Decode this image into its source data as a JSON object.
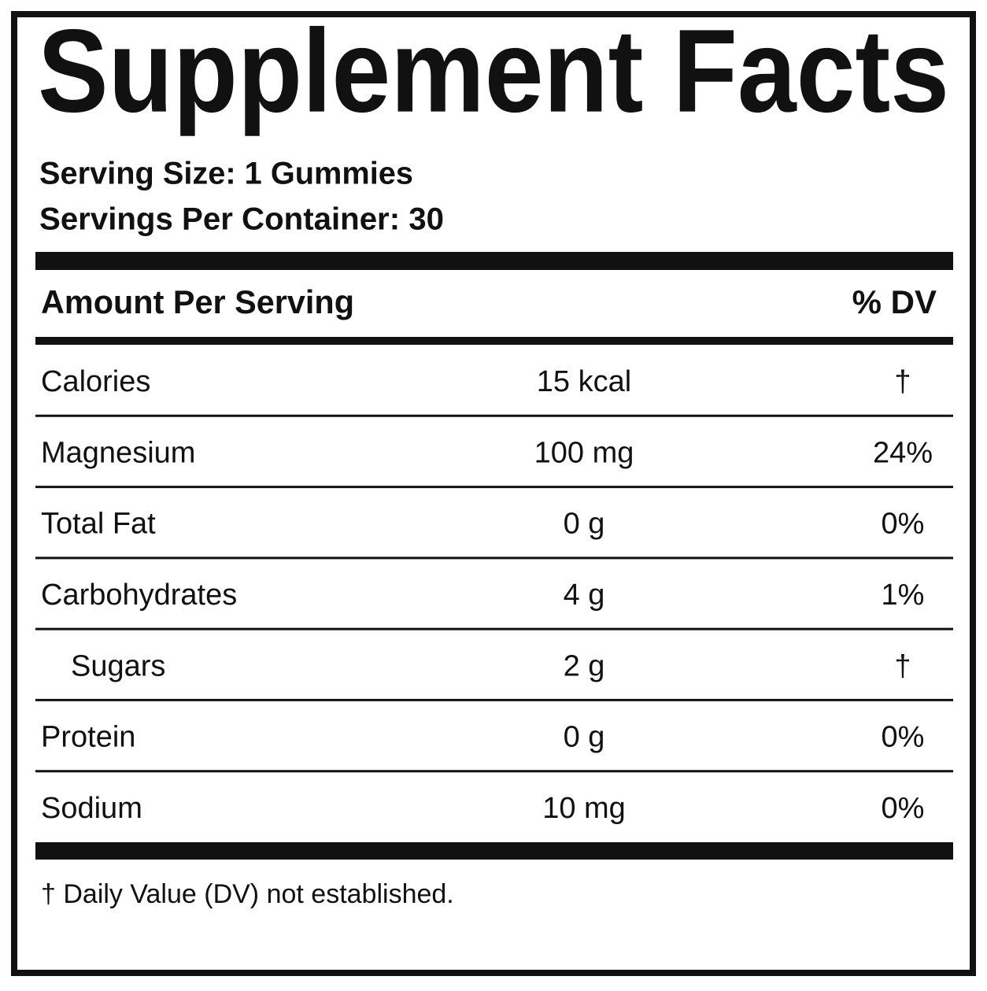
{
  "label": {
    "title": "Supplement Facts",
    "serving_size": "Serving Size: 1 Gummies",
    "servings_per_container": "Servings Per Container: 30",
    "header": {
      "amount": "Amount Per Serving",
      "dv": "% DV"
    },
    "rows": [
      {
        "name": "Calories",
        "amount": "15 kcal",
        "dv": "†"
      },
      {
        "name": "Magnesium",
        "amount": "100 mg",
        "dv": "24%"
      },
      {
        "name": "Total Fat",
        "amount": "0 g",
        "dv": "0%"
      },
      {
        "name": "Carbohydrates",
        "amount": "4 g",
        "dv": "1%"
      },
      {
        "name": "Sugars",
        "amount": "2 g",
        "dv": "†"
      },
      {
        "name": "Protein",
        "amount": "0 g",
        "dv": "0%"
      },
      {
        "name": "Sodium",
        "amount": "10 mg",
        "dv": "0%"
      }
    ],
    "footnote": "† Daily Value (DV) not established."
  }
}
